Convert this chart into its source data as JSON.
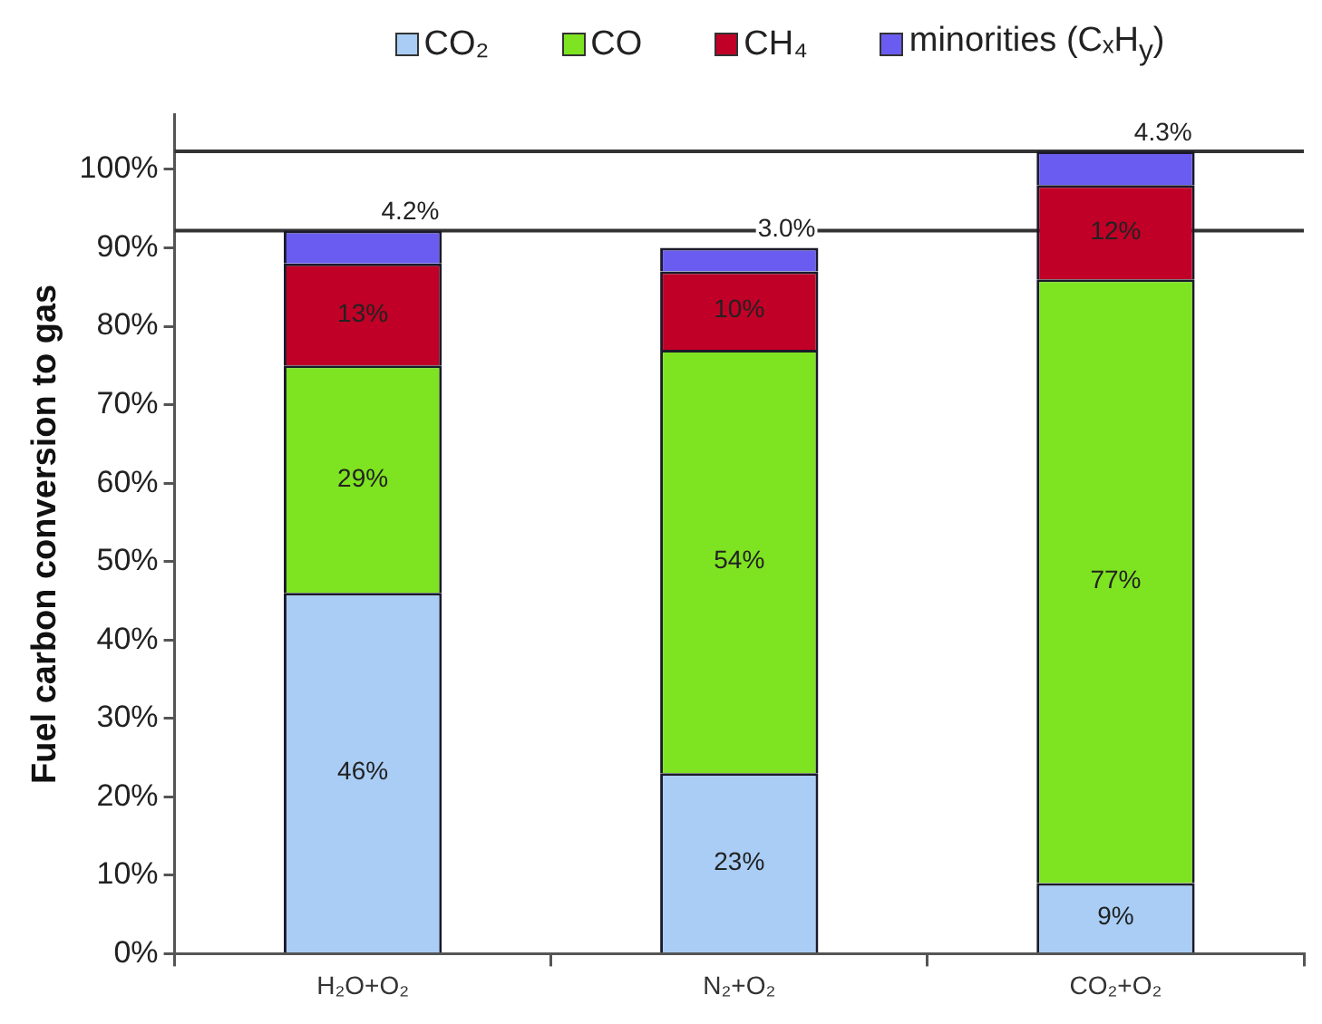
{
  "chart_data": {
    "type": "bar",
    "stacked": true,
    "ylabel": "Fuel carbon conversion to gas",
    "categories": [
      "H₂O+O₂",
      "N₂+O₂",
      "CO₂+O₂"
    ],
    "series": [
      {
        "name": "CO₂",
        "color": "#a9cdf5",
        "values": [
          46,
          23,
          9
        ],
        "value_labels": [
          "46%",
          "23%",
          "9%"
        ]
      },
      {
        "name": "CO",
        "color": "#7ee321",
        "values": [
          29,
          54,
          77
        ],
        "value_labels": [
          "29%",
          "54%",
          "77%"
        ]
      },
      {
        "name": "CH₄",
        "color": "#c00026",
        "values": [
          13,
          10,
          12
        ],
        "value_labels": [
          "13%",
          "10%",
          "12%"
        ]
      },
      {
        "name": "minorities (CₓH$_{y}$)",
        "color": "#6a5cf0",
        "values": [
          4.2,
          3.0,
          4.3
        ],
        "value_labels": [
          "4.2%",
          "3.0%",
          "4.3%"
        ]
      }
    ],
    "ylim": [
      0,
      107
    ],
    "yticks": [
      {
        "value": 0,
        "label": "0%"
      },
      {
        "value": 10,
        "label": "10%"
      },
      {
        "value": 20,
        "label": "20%"
      },
      {
        "value": 30,
        "label": "30%"
      },
      {
        "value": 40,
        "label": "40%"
      },
      {
        "value": 50,
        "label": "50%"
      },
      {
        "value": 60,
        "label": "60%"
      },
      {
        "value": 70,
        "label": "70%"
      },
      {
        "value": 80,
        "label": "80%"
      },
      {
        "value": 90,
        "label": "90%"
      },
      {
        "value": 100,
        "label": "100%"
      }
    ],
    "ref_lines": [
      {
        "axis": "y",
        "value": 92.2,
        "color": "#333333"
      },
      {
        "axis": "y",
        "value": 102.3,
        "color": "#333333"
      }
    ],
    "legend": "top"
  }
}
